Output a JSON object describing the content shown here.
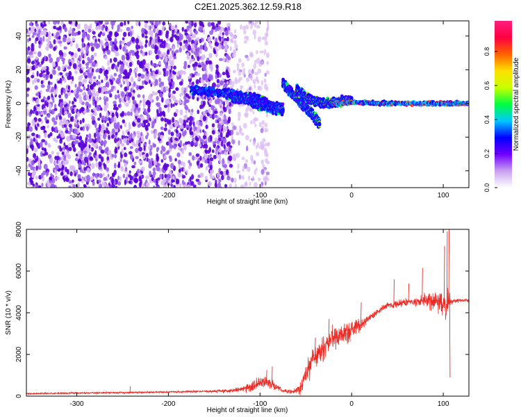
{
  "title": "C2E1.2025.362.12.59.R18",
  "colors": {
    "snr_line": "#ee2a24",
    "spec_dark": "#5a00d8",
    "spec_mid": "#2060ff",
    "spec_light": "#d8b8f4",
    "colorbar": [
      "#ffffff",
      "#c8a0f0",
      "#7000ff",
      "#0000ff",
      "#00c8ff",
      "#00ff40",
      "#c8ff00",
      "#ffe000",
      "#ff6000",
      "#ff0040",
      "#ff2080"
    ]
  },
  "chart_data": [
    {
      "type": "heatmap",
      "name": "spectrogram",
      "xlabel": "Height of straight line (km)",
      "ylabel": "Frequency (Hz)",
      "xlim": [
        -355,
        128
      ],
      "ylim": [
        -50,
        49
      ],
      "xticks": [
        -300,
        -200,
        -100,
        0,
        100
      ],
      "yticks": [
        -40,
        -20,
        0,
        20,
        40
      ],
      "colorbar": {
        "label": "Normalized spectral amplitude",
        "range": [
          0,
          0.98
        ],
        "ticks": [
          "0.0",
          "0.2",
          "0.4",
          "0.6",
          "0.8"
        ],
        "tick_values": [
          0,
          0.2,
          0.4,
          0.6,
          0.8
        ]
      },
      "features": [
        {
          "name": "broadband noise",
          "x_range": [
            -355,
            -130
          ],
          "y_range": [
            -50,
            49
          ],
          "amplitude": 0.15
        },
        {
          "name": "scattered noise",
          "x_range": [
            -130,
            -90
          ],
          "y_range": [
            -50,
            49
          ],
          "amplitude": 0.05
        },
        {
          "name": "upper band",
          "points": [
            [
              -175,
              8
            ],
            [
              -140,
              6
            ],
            [
              -120,
              5
            ],
            [
              -100,
              2
            ],
            [
              -85,
              -2
            ],
            [
              -75,
              -3
            ]
          ],
          "amplitude": 0.3
        },
        {
          "name": "lower band",
          "points": [
            [
              -130,
              3
            ],
            [
              -115,
              2
            ],
            [
              -100,
              -1
            ],
            [
              -85,
              -3
            ],
            [
              -75,
              -4
            ]
          ],
          "amplitude": 0.3
        },
        {
          "name": "descending trace",
          "points": [
            [
              -75,
              12
            ],
            [
              -65,
              6
            ],
            [
              -55,
              0
            ],
            [
              -45,
              -5
            ],
            [
              -35,
              -12
            ]
          ],
          "amplitude": 0.35
        },
        {
          "name": "converging trace",
          "points": [
            [
              -60,
              8
            ],
            [
              -45,
              2
            ],
            [
              -30,
              0
            ],
            [
              -15,
              1
            ],
            [
              0,
              2
            ]
          ],
          "amplitude": 0.4
        },
        {
          "name": "carrier line",
          "points": [
            [
              -20,
              0
            ],
            [
              0,
              0.5
            ],
            [
              50,
              0
            ],
            [
              100,
              0
            ],
            [
              128,
              0
            ]
          ],
          "amplitude": 0.9
        }
      ]
    },
    {
      "type": "line",
      "name": "snr",
      "xlabel": "Height of straight line (km)",
      "ylabel": "SNR (10 * v/v)",
      "xlim": [
        -355,
        128
      ],
      "ylim": [
        0,
        8000
      ],
      "xticks": [
        -300,
        -200,
        -100,
        0,
        100
      ],
      "yticks": [
        0,
        2000,
        4000,
        6000,
        8000
      ],
      "envelope": {
        "x": [
          -355,
          -300,
          -250,
          -200,
          -160,
          -130,
          -110,
          -100,
          -92,
          -85,
          -75,
          -65,
          -55,
          -50,
          -45,
          -40,
          -30,
          -20,
          -10,
          0,
          10,
          20,
          30,
          40,
          50,
          60,
          70,
          80,
          90,
          100,
          105,
          110,
          120,
          128
        ],
        "y": [
          120,
          150,
          170,
          200,
          230,
          260,
          420,
          650,
          700,
          500,
          250,
          200,
          380,
          1100,
          1500,
          1900,
          2300,
          2900,
          2900,
          3200,
          3400,
          3800,
          4100,
          4400,
          4400,
          4500,
          4500,
          4600,
          4550,
          4500,
          4450,
          4550,
          4600,
          4600
        ],
        "noise": [
          60,
          60,
          60,
          60,
          80,
          120,
          300,
          450,
          400,
          300,
          120,
          150,
          400,
          900,
          1100,
          1000,
          900,
          900,
          800,
          700,
          400,
          300,
          200,
          200,
          300,
          250,
          250,
          500,
          700,
          900,
          1500,
          150,
          120,
          120
        ]
      },
      "spikes": [
        [
          -242,
          470
        ],
        [
          -93,
          1250
        ],
        [
          -87,
          1420
        ],
        [
          -40,
          2800
        ],
        [
          -25,
          3700
        ],
        [
          0,
          3550
        ],
        [
          10,
          4500
        ],
        [
          46,
          5600
        ],
        [
          62,
          5400
        ],
        [
          77,
          6150
        ],
        [
          101,
          7200
        ],
        [
          104,
          7900
        ],
        [
          106,
          8000
        ],
        [
          107,
          900
        ]
      ]
    }
  ]
}
